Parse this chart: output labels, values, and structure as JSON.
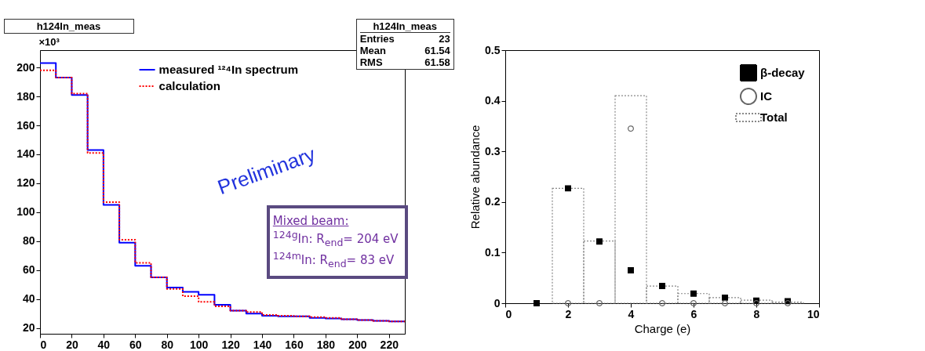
{
  "chart_data": [
    {
      "type": "histogram",
      "title": "h124In_meas",
      "ylabel": "×10³",
      "bins": [
        0,
        10,
        20,
        30,
        40,
        50,
        60,
        70,
        80,
        90,
        100,
        110,
        120,
        130,
        140,
        150,
        160,
        170,
        180,
        190,
        200,
        210,
        220,
        230
      ],
      "series": [
        {
          "name": "measured ¹²⁴In spectrum",
          "color": "#0000ff",
          "line_style": "solid",
          "values": [
            203,
            193,
            181,
            143,
            105,
            79,
            63,
            55,
            48,
            45,
            43,
            36,
            32,
            30,
            28.5,
            28,
            28,
            27,
            26.5,
            26,
            25.5,
            25,
            24.5
          ]
        },
        {
          "name": "calculation",
          "color": "#ff0000",
          "line_style": "dotted",
          "values": [
            198,
            193,
            182,
            141,
            107,
            81,
            65,
            55,
            47,
            42,
            38,
            35,
            32,
            31,
            29,
            28.5,
            28,
            27.5,
            27,
            26,
            25.5,
            25,
            24.5
          ]
        }
      ],
      "xlim": [
        0,
        230
      ],
      "xticks": [
        0,
        20,
        40,
        60,
        80,
        100,
        120,
        140,
        160,
        180,
        200,
        220
      ],
      "ylim": [
        16,
        212
      ],
      "yticks": [
        20,
        40,
        60,
        80,
        100,
        120,
        140,
        160,
        180,
        200
      ],
      "legend": "top",
      "grid": false,
      "annotations": [
        "h124In_meas",
        "Entries 23",
        "Mean 61.54",
        "RMS 61.58",
        "Preliminary",
        "Mixed beam:",
        "$^{124g}$In: R$_{end}$= 204 eV",
        "$^{124m}$In: R$_{end}$= 83 eV"
      ]
    },
    {
      "type": "bar",
      "xlabel": "Charge (e)",
      "ylabel": "Relative abundance",
      "series": [
        {
          "name": "β-decay",
          "type": "scatter",
          "marker": "square",
          "color": "#000000",
          "x": [
            1,
            2,
            3,
            4,
            5,
            6,
            7,
            8,
            9
          ],
          "values": [
            0,
            0.227,
            0.122,
            0.065,
            0.034,
            0.019,
            0.011,
            0.005,
            0.004
          ]
        },
        {
          "name": "IC",
          "type": "scatter",
          "marker": "circle",
          "color": "#666666",
          "x": [
            2,
            3,
            4,
            5,
            6,
            7,
            8,
            9
          ],
          "values": [
            0,
            0,
            0.345,
            0,
            0,
            0,
            0,
            0
          ]
        },
        {
          "name": "Total",
          "type": "bar",
          "color": "#888888",
          "line_style": "dotted",
          "x": [
            2,
            3,
            4,
            5,
            6,
            7,
            8,
            9
          ],
          "values": [
            0.227,
            0.123,
            0.41,
            0.034,
            0.019,
            0.011,
            0.006,
            0.002
          ]
        }
      ],
      "xlim": [
        0,
        10
      ],
      "xticks": [
        0,
        2,
        4,
        6,
        8,
        10
      ],
      "ylim": [
        0,
        0.5
      ],
      "yticks": [
        0,
        0.1,
        0.2,
        0.3,
        0.4,
        0.5
      ],
      "legend": "top right",
      "grid": false
    }
  ]
}
